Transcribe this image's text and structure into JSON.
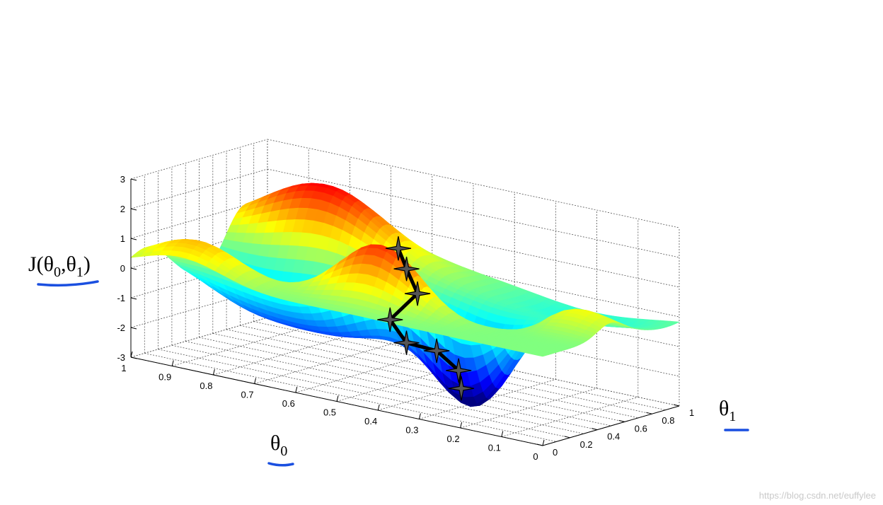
{
  "chart_data": {
    "type": "surface",
    "title": "",
    "zlabel": {
      "main": "J(θ",
      "sub0": "0",
      "mid": ",θ",
      "sub1": "1",
      "end": ")"
    },
    "xlabel": {
      "main": "θ",
      "sub": "0"
    },
    "ylabel": {
      "main": "θ",
      "sub": "1"
    },
    "z_ticks": [
      "3",
      "2",
      "1",
      "0",
      "-1",
      "-2",
      "-3"
    ],
    "z_range": [
      -3,
      3
    ],
    "theta0_ticks": [
      "1",
      "0.9",
      "0.8",
      "0.7",
      "0.6",
      "0.5",
      "0.4",
      "0.3",
      "0.2",
      "0.1",
      "0"
    ],
    "theta0_range": [
      0,
      1
    ],
    "theta1_ticks": [
      "0",
      "0.2",
      "0.4",
      "0.6",
      "0.8",
      "1"
    ],
    "theta1_range": [
      0,
      1
    ],
    "colormap": "jet",
    "grid": true,
    "descent_path": {
      "marker": "star",
      "color": "#000000",
      "points": [
        {
          "theta0": 0.45,
          "theta1": 0.3,
          "J": 1.9
        },
        {
          "theta0": 0.44,
          "theta1": 0.33,
          "J": 1.2
        },
        {
          "theta0": 0.42,
          "theta1": 0.35,
          "J": 0.4
        },
        {
          "theta0": 0.49,
          "theta1": 0.36,
          "J": -0.7
        },
        {
          "theta0": 0.47,
          "theta1": 0.42,
          "J": -1.5
        },
        {
          "theta0": 0.39,
          "theta1": 0.4,
          "J": -1.5
        },
        {
          "theta0": 0.35,
          "theta1": 0.44,
          "J": -2.1
        },
        {
          "theta0": 0.36,
          "theta1": 0.49,
          "J": -2.8
        }
      ]
    }
  },
  "watermark": "https://blog.csdn.net/euffylee"
}
